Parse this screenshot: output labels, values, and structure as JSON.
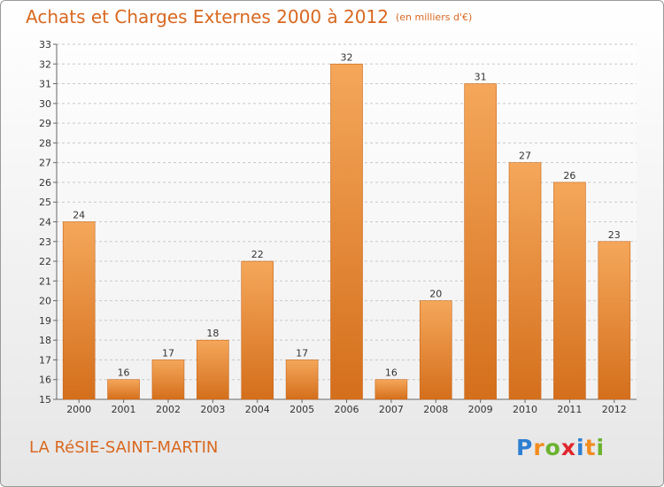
{
  "header": {
    "title": "Achats et Charges Externes 2000 à 2012",
    "unit": "(en milliers d'€)"
  },
  "footer": {
    "commune": "LA RéSIE-SAINT-MARTIN",
    "logo": "Proxiti",
    "logo_colors": [
      "#2e7fd1",
      "#f28c1e",
      "#6bb22f",
      "#e0262c",
      "#2e7fd1",
      "#f28c1e",
      "#6bb22f"
    ]
  },
  "chart_data": {
    "type": "bar",
    "categories": [
      "2000",
      "2001",
      "2002",
      "2003",
      "2004",
      "2005",
      "2006",
      "2007",
      "2008",
      "2009",
      "2010",
      "2011",
      "2012"
    ],
    "values": [
      24,
      16,
      17,
      18,
      22,
      17,
      32,
      16,
      20,
      31,
      27,
      26,
      23
    ],
    "ylim": [
      15,
      33
    ],
    "yticks": [
      15,
      16,
      17,
      18,
      19,
      20,
      21,
      22,
      23,
      24,
      25,
      26,
      27,
      28,
      29,
      30,
      31,
      32,
      33
    ],
    "grid": true,
    "bar_color": "#e88a35",
    "title": "Achats et Charges Externes 2000 à 2012",
    "xlabel": "",
    "ylabel": ""
  }
}
